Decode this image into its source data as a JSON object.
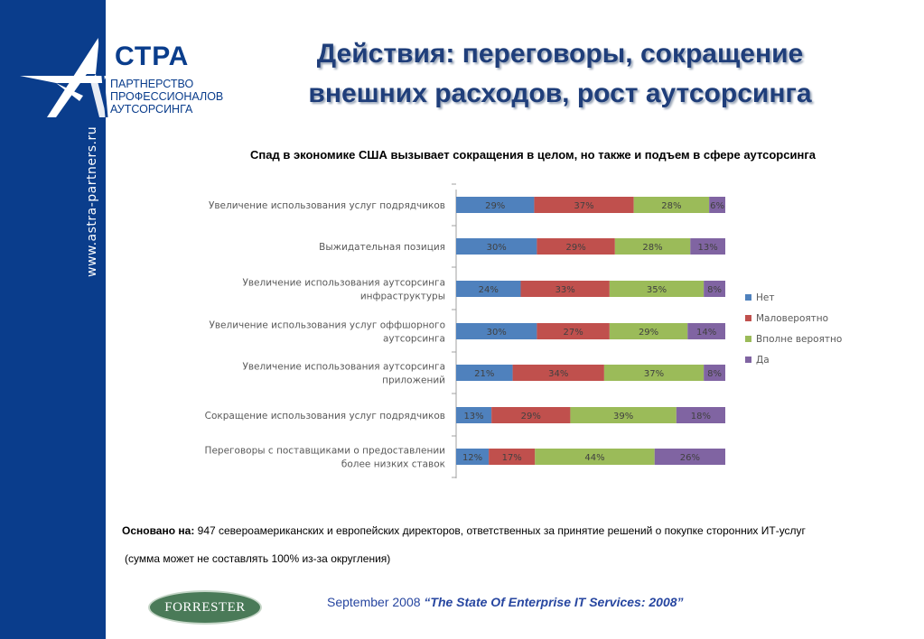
{
  "brand": {
    "logo_word": "СТРА",
    "logo_lines": [
      "ПАРТНЕРСТВО",
      "ПРОФЕССИОНАЛОВ",
      "АУТСОРСИНГА"
    ],
    "sidebar_url": "www.astra-partners.ru",
    "color_sidebar": "#0a3d8c"
  },
  "title_lines": [
    "Действия: переговоры, сокращение",
    "внешних расходов, рост аутсорсинга"
  ],
  "subtitle": "Спад в экономике США вызывает сокращения в целом, но также и подъем в сфере аутсорсинга",
  "chart_data": {
    "type": "bar",
    "orientation": "horizontal",
    "stacked": true,
    "normalized": true,
    "categories": [
      [
        "Увеличение использования услуг подрядчиков"
      ],
      [
        "Выжидательная позиция"
      ],
      [
        "Увеличение использования аутсорсинга",
        "инфраструктуры"
      ],
      [
        "Увеличение использования услуг оффшорного",
        "аутсорсинга"
      ],
      [
        "Увеличение использования аутсорсинга",
        "приложений"
      ],
      [
        "Сокращение использования услуг подрядчиков"
      ],
      [
        "Переговоры с поставщиками о предоставлении",
        "более низких ставок"
      ]
    ],
    "series": [
      {
        "name": "Нет",
        "color": "#4f81bd",
        "values": [
          29,
          30,
          24,
          30,
          21,
          13,
          12
        ]
      },
      {
        "name": "Маловероятно",
        "color": "#c0504d",
        "values": [
          37,
          29,
          33,
          27,
          34,
          29,
          17
        ]
      },
      {
        "name": "Вполне вероятно",
        "color": "#9bbb59",
        "values": [
          28,
          28,
          35,
          29,
          37,
          39,
          44
        ]
      },
      {
        "name": "Да",
        "color": "#8064a2",
        "values": [
          6,
          13,
          8,
          14,
          8,
          18,
          26
        ]
      }
    ],
    "value_suffix": "%",
    "legend_position": "right",
    "grid": false
  },
  "footnote": {
    "prefix": "Основано на:",
    "text": " 947 североамериканских и европейских директоров, ответственных за принятие решений о покупке сторонних ИТ-услуг",
    "note": "(сумма может не составлять 100% из-за округления)"
  },
  "source": {
    "logo_text": "FORRESTER",
    "date": "September 2008 ",
    "report": "“The State Of Enterprise IT Services: 2008”"
  }
}
